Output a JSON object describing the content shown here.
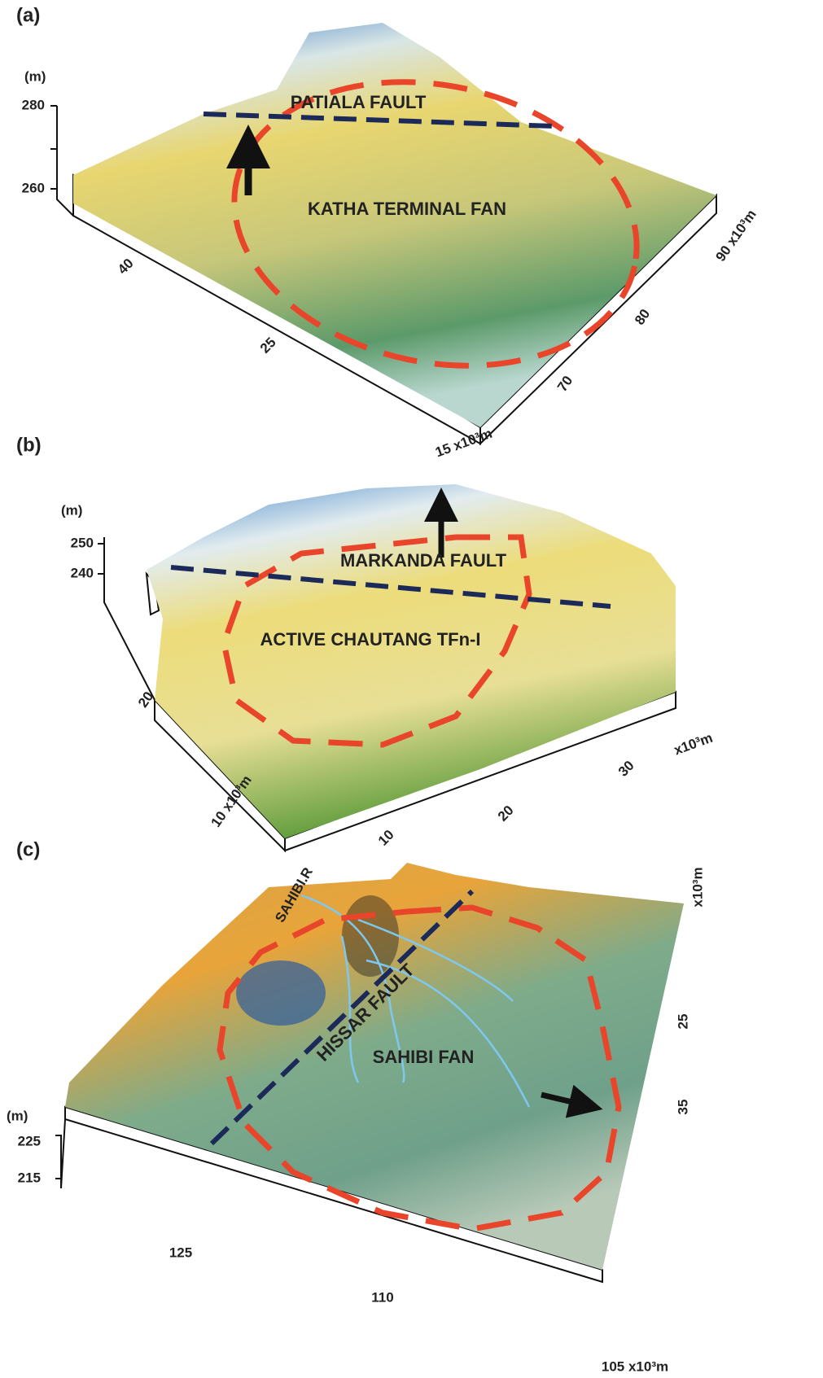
{
  "panels": [
    {
      "label": "(a)",
      "unit": "(m)",
      "zticks": [
        "280",
        "260"
      ],
      "annotations": [
        "PATIALA FAULT",
        "KATHA TERMINAL FAN"
      ],
      "left_ticks": [
        "40",
        "25",
        "15 x10³m"
      ],
      "right_ticks": [
        "70",
        "80",
        "90 x10³m"
      ]
    },
    {
      "label": "(b)",
      "unit": "(m)",
      "zticks": [
        "250",
        "240"
      ],
      "annotations": [
        "MARKANDA FAULT",
        "ACTIVE CHAUTANG TFn-I"
      ],
      "left_ticks": [
        "20",
        "10 x10³m"
      ],
      "right_ticks": [
        "10",
        "20",
        "30",
        "x10³m"
      ]
    },
    {
      "label": "(c)",
      "unit": "(m)",
      "zticks": [
        "225",
        "215"
      ],
      "annotations": [
        "SAHIBI.R",
        "HISSAR FAULT",
        "SAHIBI FAN"
      ],
      "left_ticks": [
        "125",
        "110",
        "105 x10³m"
      ],
      "right_ticks": [
        "x10³m",
        "25",
        "35"
      ]
    }
  ]
}
